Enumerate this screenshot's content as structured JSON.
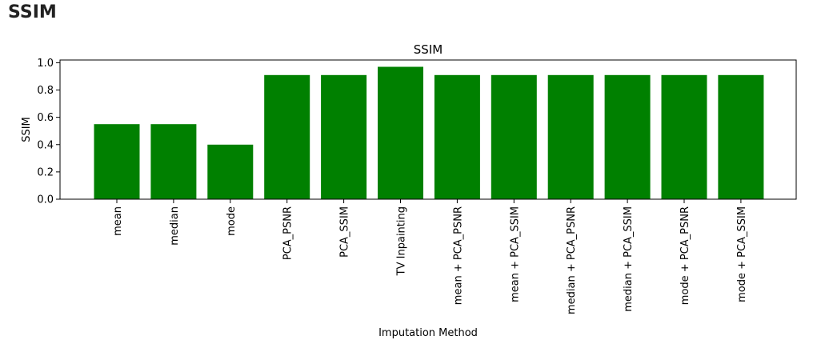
{
  "page": {
    "heading": "SSIM"
  },
  "chart_data": {
    "type": "bar",
    "title": "SSIM",
    "xlabel": "Imputation Method",
    "ylabel": "SSIM",
    "categories": [
      "mean",
      "median",
      "mode",
      "PCA_PSNR",
      "PCA_SSIM",
      "TV Inpainting",
      "mean + PCA_PSNR",
      "mean + PCA_SSIM",
      "median + PCA_PSNR",
      "median + PCA_SSIM",
      "mode + PCA_PSNR",
      "mode + PCA_SSIM"
    ],
    "values": [
      0.55,
      0.55,
      0.4,
      0.91,
      0.91,
      0.97,
      0.91,
      0.91,
      0.91,
      0.91,
      0.91,
      0.91
    ],
    "ylim": [
      0,
      1.02
    ],
    "yticks": [
      "0.0",
      "0.2",
      "0.4",
      "0.6",
      "0.8",
      "1.0"
    ],
    "bar_color": "#008000",
    "grid": false
  }
}
